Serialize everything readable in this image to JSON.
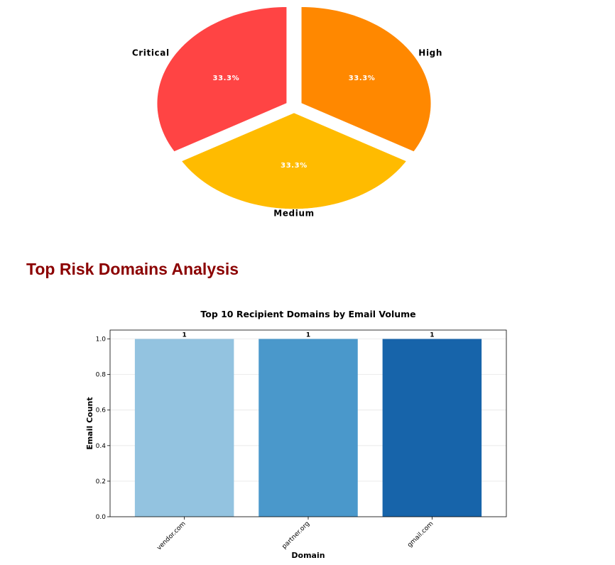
{
  "section": {
    "title": "Top Risk Domains Analysis"
  },
  "chart_data": [
    {
      "type": "pie",
      "title": "",
      "labels": [
        "Critical",
        "Medium",
        "High"
      ],
      "values": [
        33.3,
        33.3,
        33.3
      ],
      "percent_labels": [
        "33.3%",
        "33.3%",
        "33.3%"
      ],
      "colors": [
        "#ff4444",
        "#ffbb00",
        "#ff8800"
      ],
      "exploded": true
    },
    {
      "type": "bar",
      "title": "Top 10 Recipient Domains by Email Volume",
      "xlabel": "Domain",
      "ylabel": "Email Count",
      "categories": [
        "vendor.com",
        "partner.org",
        "gmail.com"
      ],
      "values": [
        1,
        1,
        1
      ],
      "value_labels": [
        "1",
        "1",
        "1"
      ],
      "colors": [
        "#93c3e0",
        "#4a98cb",
        "#1764aa"
      ],
      "ylim": [
        0,
        1.05
      ],
      "yticks": [
        "0.0",
        "0.2",
        "0.4",
        "0.6",
        "0.8",
        "1.0"
      ],
      "grid": "y"
    }
  ]
}
